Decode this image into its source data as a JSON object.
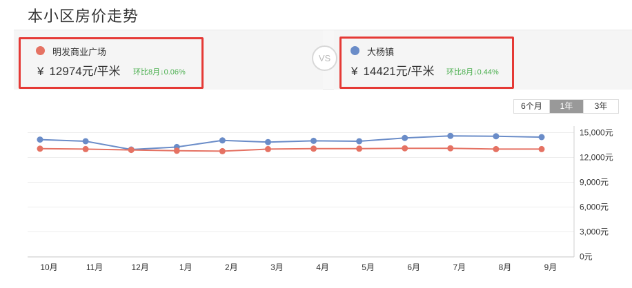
{
  "page": {
    "title": "本小区房价走势"
  },
  "compare": {
    "left": {
      "name": "明发商业广场",
      "currency": "¥",
      "price": "12974元/平米",
      "change": "环比8月↓0.06%",
      "color": "#e57263"
    },
    "vs": "VS",
    "right": {
      "name": "大杨镇",
      "currency": "¥",
      "price": "14421元/平米",
      "change": "环比8月↓0.44%",
      "color": "#6a8cc8"
    }
  },
  "range_tabs": [
    {
      "label": "6个月",
      "active": false
    },
    {
      "label": "1年",
      "active": true
    },
    {
      "label": "3年",
      "active": false
    }
  ],
  "chart_data": {
    "type": "line",
    "categories": [
      "10月",
      "11月",
      "12月",
      "1月",
      "2月",
      "3月",
      "4月",
      "5月",
      "6月",
      "7月",
      "8月",
      "9月"
    ],
    "series": [
      {
        "name": "大杨镇",
        "color": "#6a8cc8",
        "values": [
          14200,
          14000,
          13000,
          13300,
          14100,
          13900,
          14050,
          14000,
          14400,
          14650,
          14600,
          14500
        ]
      },
      {
        "name": "明发商业广场",
        "color": "#e57263",
        "values": [
          13100,
          13050,
          12950,
          12850,
          12800,
          13050,
          13100,
          13100,
          13150,
          13150,
          13050,
          13050
        ]
      }
    ],
    "y_ticks": [
      "15,000元",
      "12,000元",
      "9,000元",
      "6,000元",
      "3,000元",
      "0元"
    ],
    "ylim": [
      0,
      15000
    ],
    "y_axis_position": "right",
    "grid": true
  }
}
